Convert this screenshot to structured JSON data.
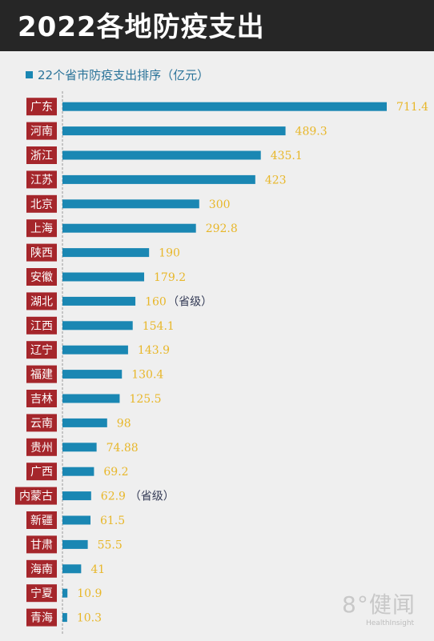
{
  "header": {
    "title": "2022各地防疫支出"
  },
  "chart_data": {
    "type": "bar",
    "orientation": "horizontal",
    "categories": [
      "广东",
      "河南",
      "浙江",
      "江苏",
      "北京",
      "上海",
      "陕西",
      "安徽",
      "湖北",
      "江西",
      "辽宁",
      "福建",
      "吉林",
      "云南",
      "贵州",
      "广西",
      "内蒙古",
      "新疆",
      "甘肃",
      "海南",
      "宁夏",
      "青海"
    ],
    "series": [
      {
        "name": "22个省市防疫支出排序（亿元）",
        "values": [
          711.4,
          489.3,
          435.1,
          423,
          300,
          292.8,
          190,
          179.2,
          160,
          154.1,
          143.9,
          130.4,
          125.5,
          98,
          74.88,
          69.2,
          62.9,
          61.5,
          55.5,
          41,
          10.9,
          10.3
        ]
      }
    ],
    "value_labels": [
      "711.4",
      "489.3",
      "435.1",
      "423",
      "300",
      "292.8",
      "190",
      "179.2",
      "160",
      "154.1",
      "143.9",
      "130.4",
      "125.5",
      "98",
      "74.88",
      "69.2",
      "62.9",
      "61.5",
      "55.5",
      "41",
      "10.9",
      "10.3"
    ],
    "annotations": [
      {
        "category": "湖北",
        "text": "（省级）"
      },
      {
        "category": "内蒙古",
        "text": "（省级）"
      }
    ],
    "legend_position": "top-left",
    "grid": false,
    "colors": {
      "bar": "#1a87b3",
      "category_label_bg": "#a5262b",
      "category_label_text": "#ffffff",
      "value_label": "#e8b72a",
      "annotation": "#333a55"
    }
  },
  "watermark": {
    "brand": "8°健闻",
    "sub": "HealthInsight"
  }
}
